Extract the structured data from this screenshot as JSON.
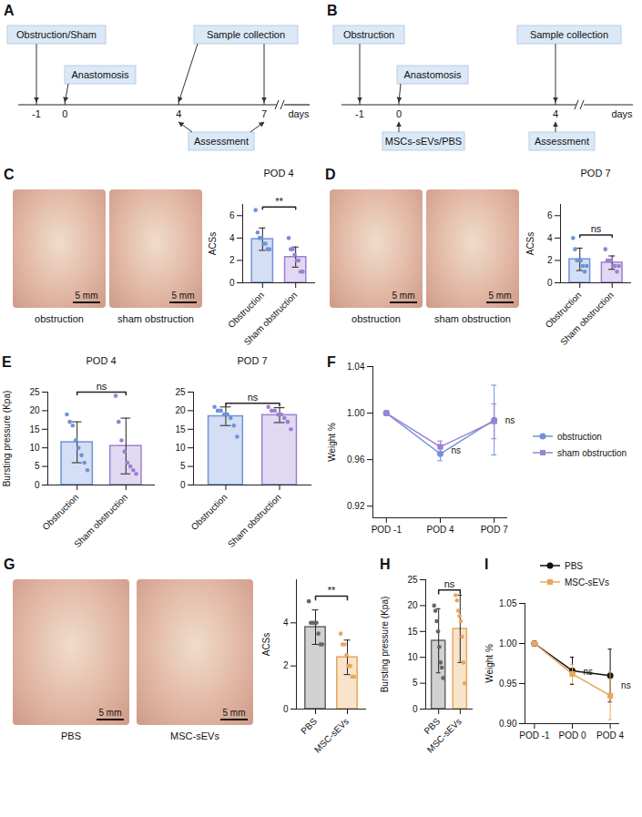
{
  "diagrams": [
    {
      "panel": "A",
      "ticks": [
        -1,
        0,
        4,
        7
      ],
      "unit": "days",
      "events": [
        {
          "label": "Obstruction/Sham",
          "at": [
            -1
          ]
        },
        {
          "label": "Anastomosis",
          "at": [
            0
          ]
        },
        {
          "label": "Sample collection",
          "at": [
            4,
            7
          ]
        },
        {
          "label": "Assessment",
          "at": [
            4,
            7
          ]
        }
      ]
    },
    {
      "panel": "B",
      "ticks": [
        -1,
        0,
        4
      ],
      "unit": "days",
      "events": [
        {
          "label": "Obstruction",
          "at": [
            -1
          ]
        },
        {
          "label": "Anastomosis",
          "at": [
            0
          ]
        },
        {
          "label": "Sample collection",
          "at": [
            4
          ]
        },
        {
          "label": "MSCs-sEVs/PBS",
          "at": [
            0
          ]
        },
        {
          "label": "Assessment",
          "at": [
            4
          ]
        }
      ]
    }
  ],
  "photos": [
    {
      "panel": "C",
      "images": [
        {
          "caption": "obstruction",
          "scale_bar": "5 mm"
        },
        {
          "caption": "sham obstruction",
          "scale_bar": "5 mm"
        }
      ]
    },
    {
      "panel": "D",
      "images": [
        {
          "caption": "obstruction",
          "scale_bar": "5 mm"
        },
        {
          "caption": "sham obstruction",
          "scale_bar": "5 mm"
        }
      ]
    },
    {
      "panel": "G",
      "images": [
        {
          "caption": "PBS",
          "scale_bar": "5 mm"
        },
        {
          "caption": "MSC-sEVs",
          "scale_bar": "5 mm"
        }
      ]
    }
  ],
  "chart_data": [
    {
      "type": "bar",
      "title": "POD 4",
      "ylabel": "ACSs",
      "categories": [
        "Obstruction",
        "Sham obstruction"
      ],
      "values": [
        3.9,
        2.3
      ],
      "errors": [
        1.0,
        0.9
      ],
      "points": [
        [
          6.5,
          4.5,
          4,
          4,
          3.5,
          3.5,
          3,
          3
        ],
        [
          4,
          3,
          3,
          2.5,
          2,
          2,
          1,
          1
        ]
      ],
      "colors": [
        "#6f93d9",
        "#9b80d3"
      ],
      "ylim": [
        0,
        7
      ],
      "yticks": [
        0,
        2,
        4,
        6
      ],
      "significance": "**"
    },
    {
      "type": "bar",
      "title": "POD 7",
      "ylabel": "ACSs",
      "categories": [
        "Obstruction",
        "Sham obstruction"
      ],
      "values": [
        2.1,
        1.8
      ],
      "errors": [
        1.0,
        0.6
      ],
      "points": [
        [
          4,
          3,
          2,
          2,
          2,
          1.5,
          1,
          1.5
        ],
        [
          3,
          2,
          2,
          2,
          1.5,
          1.5,
          1,
          1.5
        ]
      ],
      "colors": [
        "#6f93d9",
        "#9b80d3"
      ],
      "ylim": [
        0,
        7
      ],
      "yticks": [
        0,
        2,
        4,
        6
      ],
      "significance": "ns"
    },
    {
      "type": "bar",
      "panel": "E",
      "title": "POD 4",
      "ylabel": "Bursting pressure (Kpa)",
      "categories": [
        "Obstruction",
        "Sham obstruction"
      ],
      "values": [
        11.5,
        10.5
      ],
      "errors": [
        5.5,
        7.5
      ],
      "points": [
        [
          19,
          17,
          16,
          12,
          10,
          8,
          6,
          4
        ],
        [
          24,
          17,
          12,
          9,
          6,
          5,
          4,
          3
        ]
      ],
      "colors": [
        "#6f93d9",
        "#9b80d3"
      ],
      "ylim": [
        0,
        25
      ],
      "yticks": [
        0,
        5,
        10,
        15,
        20,
        25
      ],
      "significance": "ns"
    },
    {
      "type": "bar",
      "title": "POD 7",
      "categories": [
        "Obstruction",
        "Sham obstruction"
      ],
      "values": [
        18.5,
        18.8
      ],
      "errors": [
        2.5,
        2.0
      ],
      "points": [
        [
          21,
          20,
          20,
          19,
          19,
          18,
          16,
          13
        ],
        [
          21,
          20,
          20,
          19,
          19,
          18,
          17,
          15
        ]
      ],
      "colors": [
        "#6f93d9",
        "#9b80d3"
      ],
      "ylim": [
        0,
        25
      ],
      "yticks": [
        0,
        5,
        10,
        15,
        20,
        25
      ],
      "significance": "ns"
    },
    {
      "type": "line",
      "panel": "F",
      "ylabel": "Weight %",
      "categories": [
        "POD -1",
        "POD 4",
        "POD 7"
      ],
      "series": [
        {
          "name": "obstruction",
          "color": "#6f93d9",
          "marker": "circle",
          "values": [
            1.0,
            0.965,
            0.994
          ],
          "errors": [
            0,
            0.006,
            0.03
          ]
        },
        {
          "name": "sham obstruction",
          "color": "#9b80d3",
          "marker": "square",
          "values": [
            1.0,
            0.971,
            0.993
          ],
          "errors": [
            0,
            0.005,
            0.015
          ]
        }
      ],
      "ylim": [
        0.91,
        1.04
      ],
      "yticks": [
        0.92,
        0.96,
        {
          "value": 1.0,
          "label": "1.00"
        },
        1.04
      ],
      "annotations": [
        {
          "text": "ns",
          "x": "POD 4"
        },
        {
          "text": "ns",
          "x": "POD 7"
        }
      ],
      "legend": "right"
    },
    {
      "type": "bar",
      "ylabel": "ACSs",
      "categories": [
        "PBS",
        "MSC-sEVs"
      ],
      "values": [
        3.8,
        2.4
      ],
      "errors": [
        0.8,
        0.8
      ],
      "points": [
        [
          5,
          4,
          4,
          4,
          4,
          3.5,
          3,
          3
        ],
        [
          3.5,
          3,
          3,
          2.5,
          2,
          2,
          1.5,
          1.5
        ]
      ],
      "colors": [
        "#666666",
        "#e9a65a"
      ],
      "ylim": [
        0,
        6
      ],
      "yticks": [
        0,
        2,
        4
      ],
      "significance": "**"
    },
    {
      "type": "bar",
      "panel": "H",
      "ylabel": "Bursting pressure (Kpa)",
      "categories": [
        "PBS",
        "MSC-sEVs"
      ],
      "values": [
        13.2,
        15.5
      ],
      "errors": [
        6.2,
        6.5
      ],
      "points": [
        [
          20,
          19,
          17,
          15,
          12,
          9,
          8,
          6
        ],
        [
          22,
          21,
          19,
          18,
          17,
          14,
          9,
          5
        ]
      ],
      "colors": [
        "#666666",
        "#e9a65a"
      ],
      "ylim": [
        0,
        25
      ],
      "yticks": [
        0,
        5,
        10,
        15,
        20,
        25
      ],
      "significance": "ns"
    },
    {
      "type": "line",
      "panel": "I",
      "ylabel": "Weight %",
      "categories": [
        "POD -1",
        "POD 0",
        "POD 4"
      ],
      "series": [
        {
          "name": "PBS",
          "color": "#111111",
          "marker": "circle",
          "values": [
            1.0,
            0.966,
            0.96
          ],
          "errors": [
            0,
            0.017,
            0.033
          ]
        },
        {
          "name": "MSC-sEVs",
          "color": "#e9a65a",
          "marker": "square",
          "values": [
            1.0,
            0.962,
            0.935
          ],
          "errors": [
            0,
            0.012,
            0.03
          ]
        }
      ],
      "ylim": [
        0.9,
        1.05
      ],
      "yticks": [
        {
          "value": 0.9,
          "label": "0.90"
        },
        0.95,
        {
          "value": 1.0,
          "label": "1.00"
        },
        1.05
      ],
      "annotations": [
        {
          "text": "ns",
          "x": "POD 0"
        },
        {
          "text": "ns",
          "x": "POD 4"
        }
      ],
      "legend": "top"
    }
  ]
}
